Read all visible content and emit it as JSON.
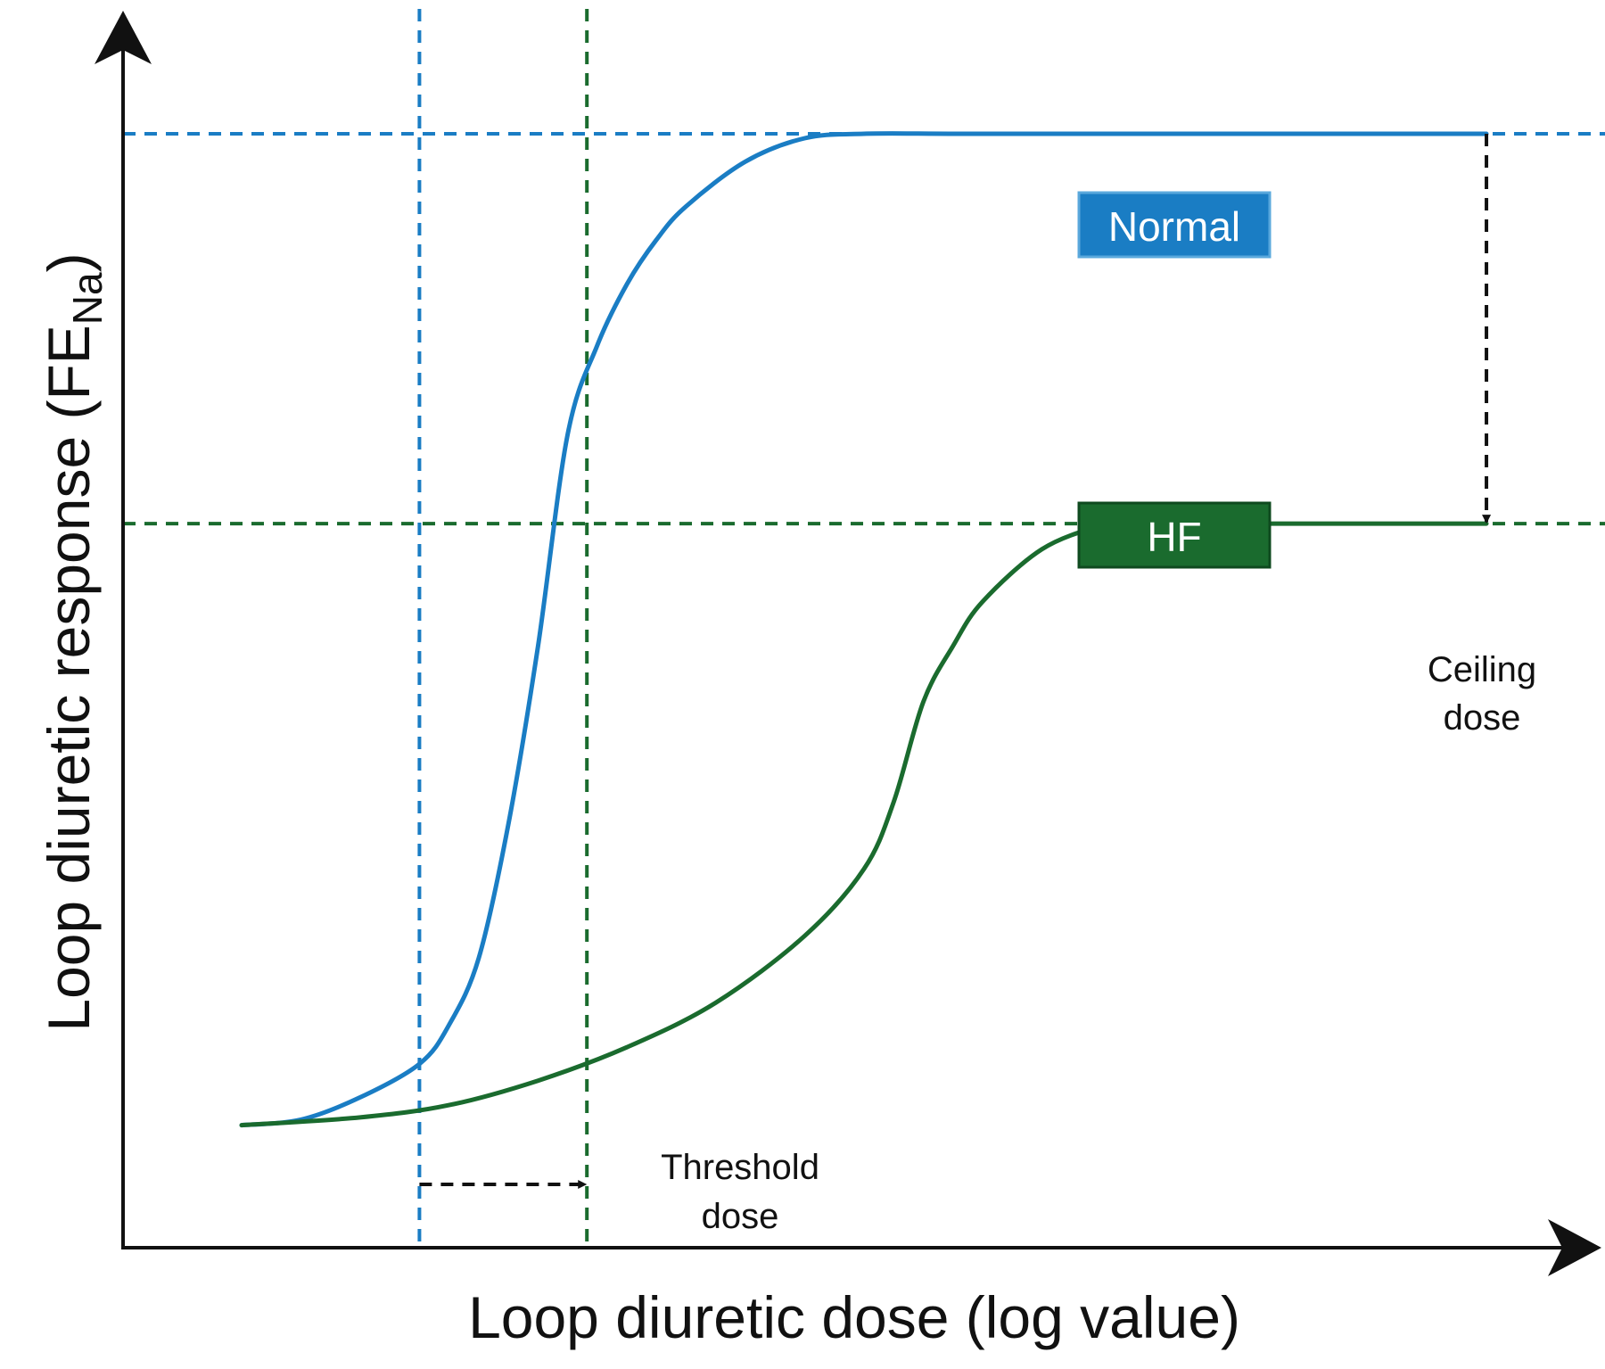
{
  "chart_data": {
    "type": "line",
    "title": "",
    "xlabel": "Loop diuretic dose (log value)",
    "ylabel_main": "Loop diuretic response (FE",
    "ylabel_sub": "Na",
    "ylabel_close": ")",
    "xlim": [
      0,
      100
    ],
    "ylim": [
      0,
      100
    ],
    "grid": false,
    "colors": {
      "normal": "#1a7dc4",
      "hf": "#1a6b2e",
      "annotation": "#111111"
    },
    "series": [
      {
        "name": "Normal",
        "color": "#1a7dc4",
        "x": [
          8.0,
          12.0,
          16.0,
          20.0,
          22.0,
          24.0,
          26.0,
          28.0,
          30.0,
          32.0,
          34.0,
          36.0,
          38.0,
          42.0,
          46.0,
          50.0,
          56.0,
          64.0,
          80.0,
          92.0
        ],
        "y": [
          11.0,
          11.5,
          13.5,
          16.5,
          20.0,
          26.0,
          38.0,
          54.0,
          73.0,
          81.0,
          86.5,
          90.5,
          93.5,
          97.5,
          99.6,
          100,
          100,
          100,
          100,
          100
        ]
      },
      {
        "name": "HF",
        "color": "#1a6b2e",
        "x": [
          8.0,
          16.0,
          22.0,
          28.0,
          34.0,
          40.0,
          46.0,
          50.0,
          52.0,
          54.0,
          56.0,
          58.0,
          62.0,
          66.0,
          68.0,
          70.0,
          80.0,
          92.0
        ],
        "y": [
          11.0,
          11.7,
          12.8,
          15.0,
          18.0,
          22.0,
          28.0,
          34.0,
          40.0,
          49.0,
          54.0,
          58.0,
          62.7,
          64.8,
          65.0,
          65.0,
          65.0,
          65.0
        ]
      }
    ],
    "reference_lines": {
      "normal_threshold_x": 20.0,
      "hf_threshold_x": 31.3,
      "normal_max_y": 100,
      "hf_max_y": 65.0,
      "ceiling_x": 92.0
    },
    "annotations": {
      "threshold_line1": "Threshold",
      "threshold_line2": "dose",
      "ceiling_line1": "Ceiling",
      "ceiling_line2": "dose"
    }
  }
}
